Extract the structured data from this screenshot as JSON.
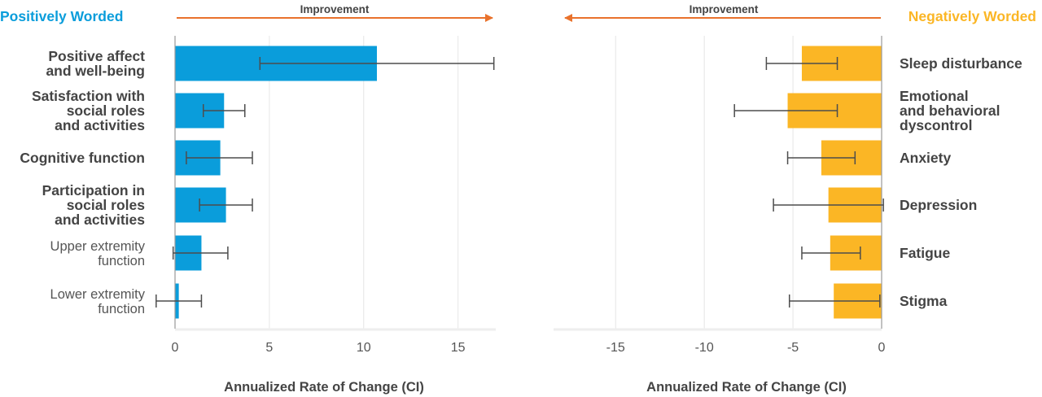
{
  "colors": {
    "positive": "#0a9ddb",
    "negative": "#fbb625",
    "arrow": "#e9722c",
    "label_strong": "#444444",
    "label_light": "#555555",
    "grid": "#e6e6e6",
    "axis": "#9a9a9a",
    "errorbar": "#4d4d4d"
  },
  "chart_data": [
    {
      "type": "bar",
      "orientation": "horizontal",
      "title": "Positively Worded",
      "arrow_label": "Improvement",
      "arrow_direction": "right",
      "xlabel": "Annualized Rate of Change (CI)",
      "xlim": [
        0,
        17
      ],
      "ticks": [
        0,
        5,
        10,
        15
      ],
      "grid": true,
      "labels_side": "left",
      "categories": [
        {
          "lines": [
            "Positive affect",
            "and well-being"
          ],
          "bold": true
        },
        {
          "lines": [
            "Satisfaction with",
            "social roles",
            "and activities"
          ],
          "bold": true
        },
        {
          "lines": [
            "Cognitive function"
          ],
          "bold": true
        },
        {
          "lines": [
            "Participation in",
            "social roles",
            "and activities"
          ],
          "bold": true
        },
        {
          "lines": [
            "Upper extremity",
            "function"
          ],
          "bold": false
        },
        {
          "lines": [
            "Lower extremity",
            "function"
          ],
          "bold": false
        }
      ],
      "values": [
        10.7,
        2.6,
        2.4,
        2.7,
        1.4,
        0.2
      ],
      "ci_low": [
        4.5,
        1.5,
        0.6,
        1.3,
        -0.1,
        -1.0
      ],
      "ci_high": [
        16.9,
        3.7,
        4.1,
        4.1,
        2.8,
        1.4
      ]
    },
    {
      "type": "bar",
      "orientation": "horizontal",
      "title": "Negatively Worded",
      "arrow_label": "Improvement",
      "arrow_direction": "left",
      "xlabel": "Annualized Rate of Change (CI)",
      "xlim": [
        -18.5,
        0
      ],
      "ticks": [
        -15,
        -10,
        -5,
        0
      ],
      "grid": true,
      "labels_side": "right",
      "categories": [
        {
          "lines": [
            "Sleep disturbance"
          ],
          "bold": true
        },
        {
          "lines": [
            "Emotional",
            "and behavioral",
            "dyscontrol"
          ],
          "bold": true
        },
        {
          "lines": [
            "Anxiety"
          ],
          "bold": true
        },
        {
          "lines": [
            "Depression"
          ],
          "bold": true
        },
        {
          "lines": [
            "Fatigue"
          ],
          "bold": true
        },
        {
          "lines": [
            "Stigma"
          ],
          "bold": true
        }
      ],
      "values": [
        -4.5,
        -5.3,
        -3.4,
        -3.0,
        -2.9,
        -2.7
      ],
      "ci_low": [
        -6.5,
        -8.3,
        -5.3,
        -6.1,
        -4.5,
        -5.2
      ],
      "ci_high": [
        -2.5,
        -2.5,
        -1.5,
        0.1,
        -1.2,
        -0.1
      ]
    }
  ]
}
